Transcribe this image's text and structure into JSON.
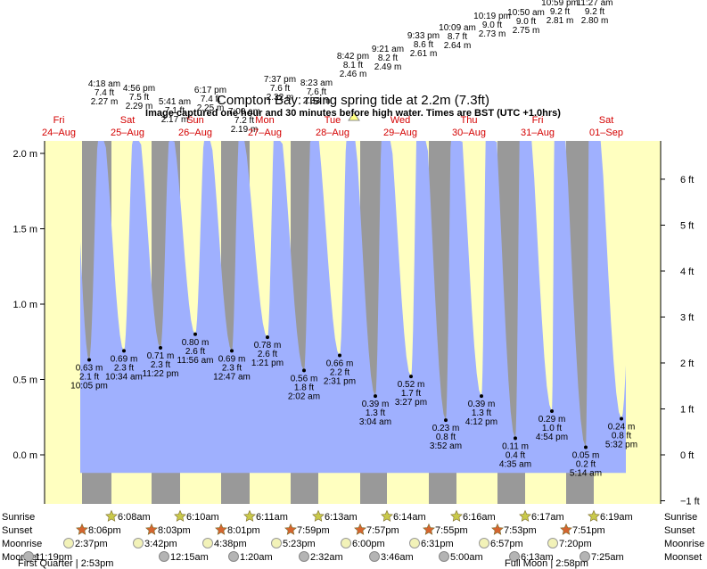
{
  "title": "Compton Bay: rising spring tide at 2.2m (7.3ft)",
  "subtitle": "Image captured one hour and 30 minutes before high water. Times are BST (UTC +1.0hrs)",
  "colors": {
    "water": "#9fb0fe",
    "day": "#ffffc0",
    "night": "#999999",
    "daylabel": "#d40000",
    "sunrise_star": "#c9c94a",
    "sunset_star": "#d5652f",
    "moon_full": "#f2f2b8",
    "moon_dark": "#b4b4b4"
  },
  "chart_data": {
    "type": "area",
    "title": "Compton Bay: rising spring tide at 2.2m (7.3ft)",
    "y_left_unit": "m",
    "y_left_ticks": [
      "0.0 m",
      "0.5 m",
      "1.0 m",
      "1.5 m",
      "2.0 m"
    ],
    "y_right_ticks": [
      "−1 ft",
      "0 ft",
      "1 ft",
      "2 ft",
      "3 ft",
      "4 ft",
      "5 ft",
      "6 ft"
    ],
    "days": [
      {
        "dow": "Fri",
        "date": "24–Aug"
      },
      {
        "dow": "Sat",
        "date": "25–Aug"
      },
      {
        "dow": "Sun",
        "date": "26–Aug"
      },
      {
        "dow": "Mon",
        "date": "27–Aug"
      },
      {
        "dow": "Tue",
        "date": "28–Aug"
      },
      {
        "dow": "Wed",
        "date": "29–Aug"
      },
      {
        "dow": "Thu",
        "date": "30–Aug"
      },
      {
        "dow": "Fri",
        "date": "31–Aug"
      },
      {
        "dow": "Sat",
        "date": "01–Sep"
      }
    ],
    "high_tides": [
      {
        "time": "4:18 am",
        "m": "7.4 ft",
        "text_m": "2.27 m",
        "ft": "7.4 ft",
        "value": 2.27
      },
      {
        "time": "4:56 pm",
        "m": "7.5 ft",
        "text_m": "2.29 m",
        "ft": "7.5 ft",
        "value": 2.29
      },
      {
        "time": "5:41 am",
        "m": "7.1 ft",
        "text_m": "2.17 m",
        "ft": "7.1 ft",
        "value": 2.17
      },
      {
        "time": "6:17 pm",
        "m": "7.4 ft",
        "text_m": "2.25 m",
        "ft": "7.4 ft",
        "value": 2.25
      },
      {
        "time": "7:00 am",
        "m": "7.2 ft",
        "text_m": "2.19 m",
        "ft": "7.2 ft",
        "value": 2.19
      },
      {
        "time": "7:37 pm",
        "m": "7.6 ft",
        "text_m": "2.32 m",
        "ft": "7.6 ft",
        "value": 2.32
      },
      {
        "time": "8:23 am",
        "m": "7.6 ft",
        "text_m": "2.33 m",
        "ft": "7.6 ft",
        "value": 2.33
      },
      {
        "time": "8:42 pm",
        "m": "8.1 ft",
        "text_m": "2.46 m",
        "ft": "8.1 ft",
        "value": 2.46
      },
      {
        "time": "9:21 am",
        "m": "8.2 ft",
        "text_m": "2.49 m",
        "ft": "8.2 ft",
        "value": 2.49
      },
      {
        "time": "9:33 pm",
        "m": "8.6 ft",
        "text_m": "2.61 m",
        "ft": "8.6 ft",
        "value": 2.61
      },
      {
        "time": "10:09 am",
        "m": "8.7 ft",
        "text_m": "2.64 m",
        "ft": "8.7 ft",
        "value": 2.64
      },
      {
        "time": "10:19 pm",
        "m": "9.0 ft",
        "text_m": "2.73 m",
        "ft": "9.0 ft",
        "value": 2.73
      },
      {
        "time": "10:50 am",
        "m": "9.0 ft",
        "text_m": "2.75 m",
        "ft": "9.0 ft",
        "value": 2.75
      },
      {
        "time": "10:59 pm",
        "m": "9.2 ft",
        "text_m": "2.81 m",
        "ft": "9.2 ft",
        "value": 2.81
      },
      {
        "time": "11:27 am",
        "m": "9.2 ft",
        "text_m": "2.80 m",
        "ft": "9.2 ft",
        "value": 2.8
      }
    ],
    "low_tides": [
      {
        "value": 0.63,
        "m": "0.63 m",
        "ft": "2.1 ft",
        "time": "10:05 pm"
      },
      {
        "value": 0.69,
        "m": "0.69 m",
        "ft": "2.3 ft",
        "time": "10:34 am"
      },
      {
        "value": 0.71,
        "m": "0.71 m",
        "ft": "2.3 ft",
        "time": "11:22 pm"
      },
      {
        "value": 0.8,
        "m": "0.80 m",
        "ft": "2.6 ft",
        "time": "11:56 am"
      },
      {
        "value": 0.69,
        "m": "0.69 m",
        "ft": "2.3 ft",
        "time": "12:47 am"
      },
      {
        "value": 0.78,
        "m": "0.78 m",
        "ft": "2.6 ft",
        "time": "1:21 pm"
      },
      {
        "value": 0.56,
        "m": "0.56 m",
        "ft": "1.8 ft",
        "time": "2:02 am"
      },
      {
        "value": 0.66,
        "m": "0.66 m",
        "ft": "2.2 ft",
        "time": "2:31 pm"
      },
      {
        "value": 0.39,
        "m": "0.39 m",
        "ft": "1.3 ft",
        "time": "3:04 am"
      },
      {
        "value": 0.52,
        "m": "0.52 m",
        "ft": "1.7 ft",
        "time": "3:27 pm"
      },
      {
        "value": 0.23,
        "m": "0.23 m",
        "ft": "0.8 ft",
        "time": "3:52 am"
      },
      {
        "value": 0.39,
        "m": "0.39 m",
        "ft": "1.3 ft",
        "time": "4:12 pm"
      },
      {
        "value": 0.11,
        "m": "0.11 m",
        "ft": "0.4 ft",
        "time": "4:35 am"
      },
      {
        "value": 0.29,
        "m": "0.29 m",
        "ft": "1.0 ft",
        "time": "4:54 pm"
      },
      {
        "value": 0.05,
        "m": "0.05 m",
        "ft": "0.2 ft",
        "time": "5:14 am"
      },
      {
        "value": 0.24,
        "m": "0.24 m",
        "ft": "0.8 ft",
        "time": "5:32 pm"
      }
    ],
    "sunrise": [
      "6:08am",
      "6:10am",
      "6:11am",
      "6:13am",
      "6:14am",
      "6:16am",
      "6:17am",
      "6:19am"
    ],
    "sunset": [
      "8:06pm",
      "8:03pm",
      "8:01pm",
      "7:59pm",
      "7:57pm",
      "7:55pm",
      "7:53pm",
      "7:51pm"
    ],
    "moonrise": [
      "2:37pm",
      "3:42pm",
      "4:38pm",
      "5:23pm",
      "6:00pm",
      "6:31pm",
      "6:57pm",
      "7:20pm"
    ],
    "moonset": [
      "11:19pm",
      "12:15am",
      "1:20am",
      "2:32am",
      "3:46am",
      "5:00am",
      "6:13am",
      "7:25am"
    ],
    "moon_phases": [
      "First Quarter | 2:53pm",
      "Full Moon | 2:58pm"
    ],
    "row_labels": [
      "Sunrise",
      "Sunset",
      "Moonrise",
      "Moonset"
    ]
  }
}
